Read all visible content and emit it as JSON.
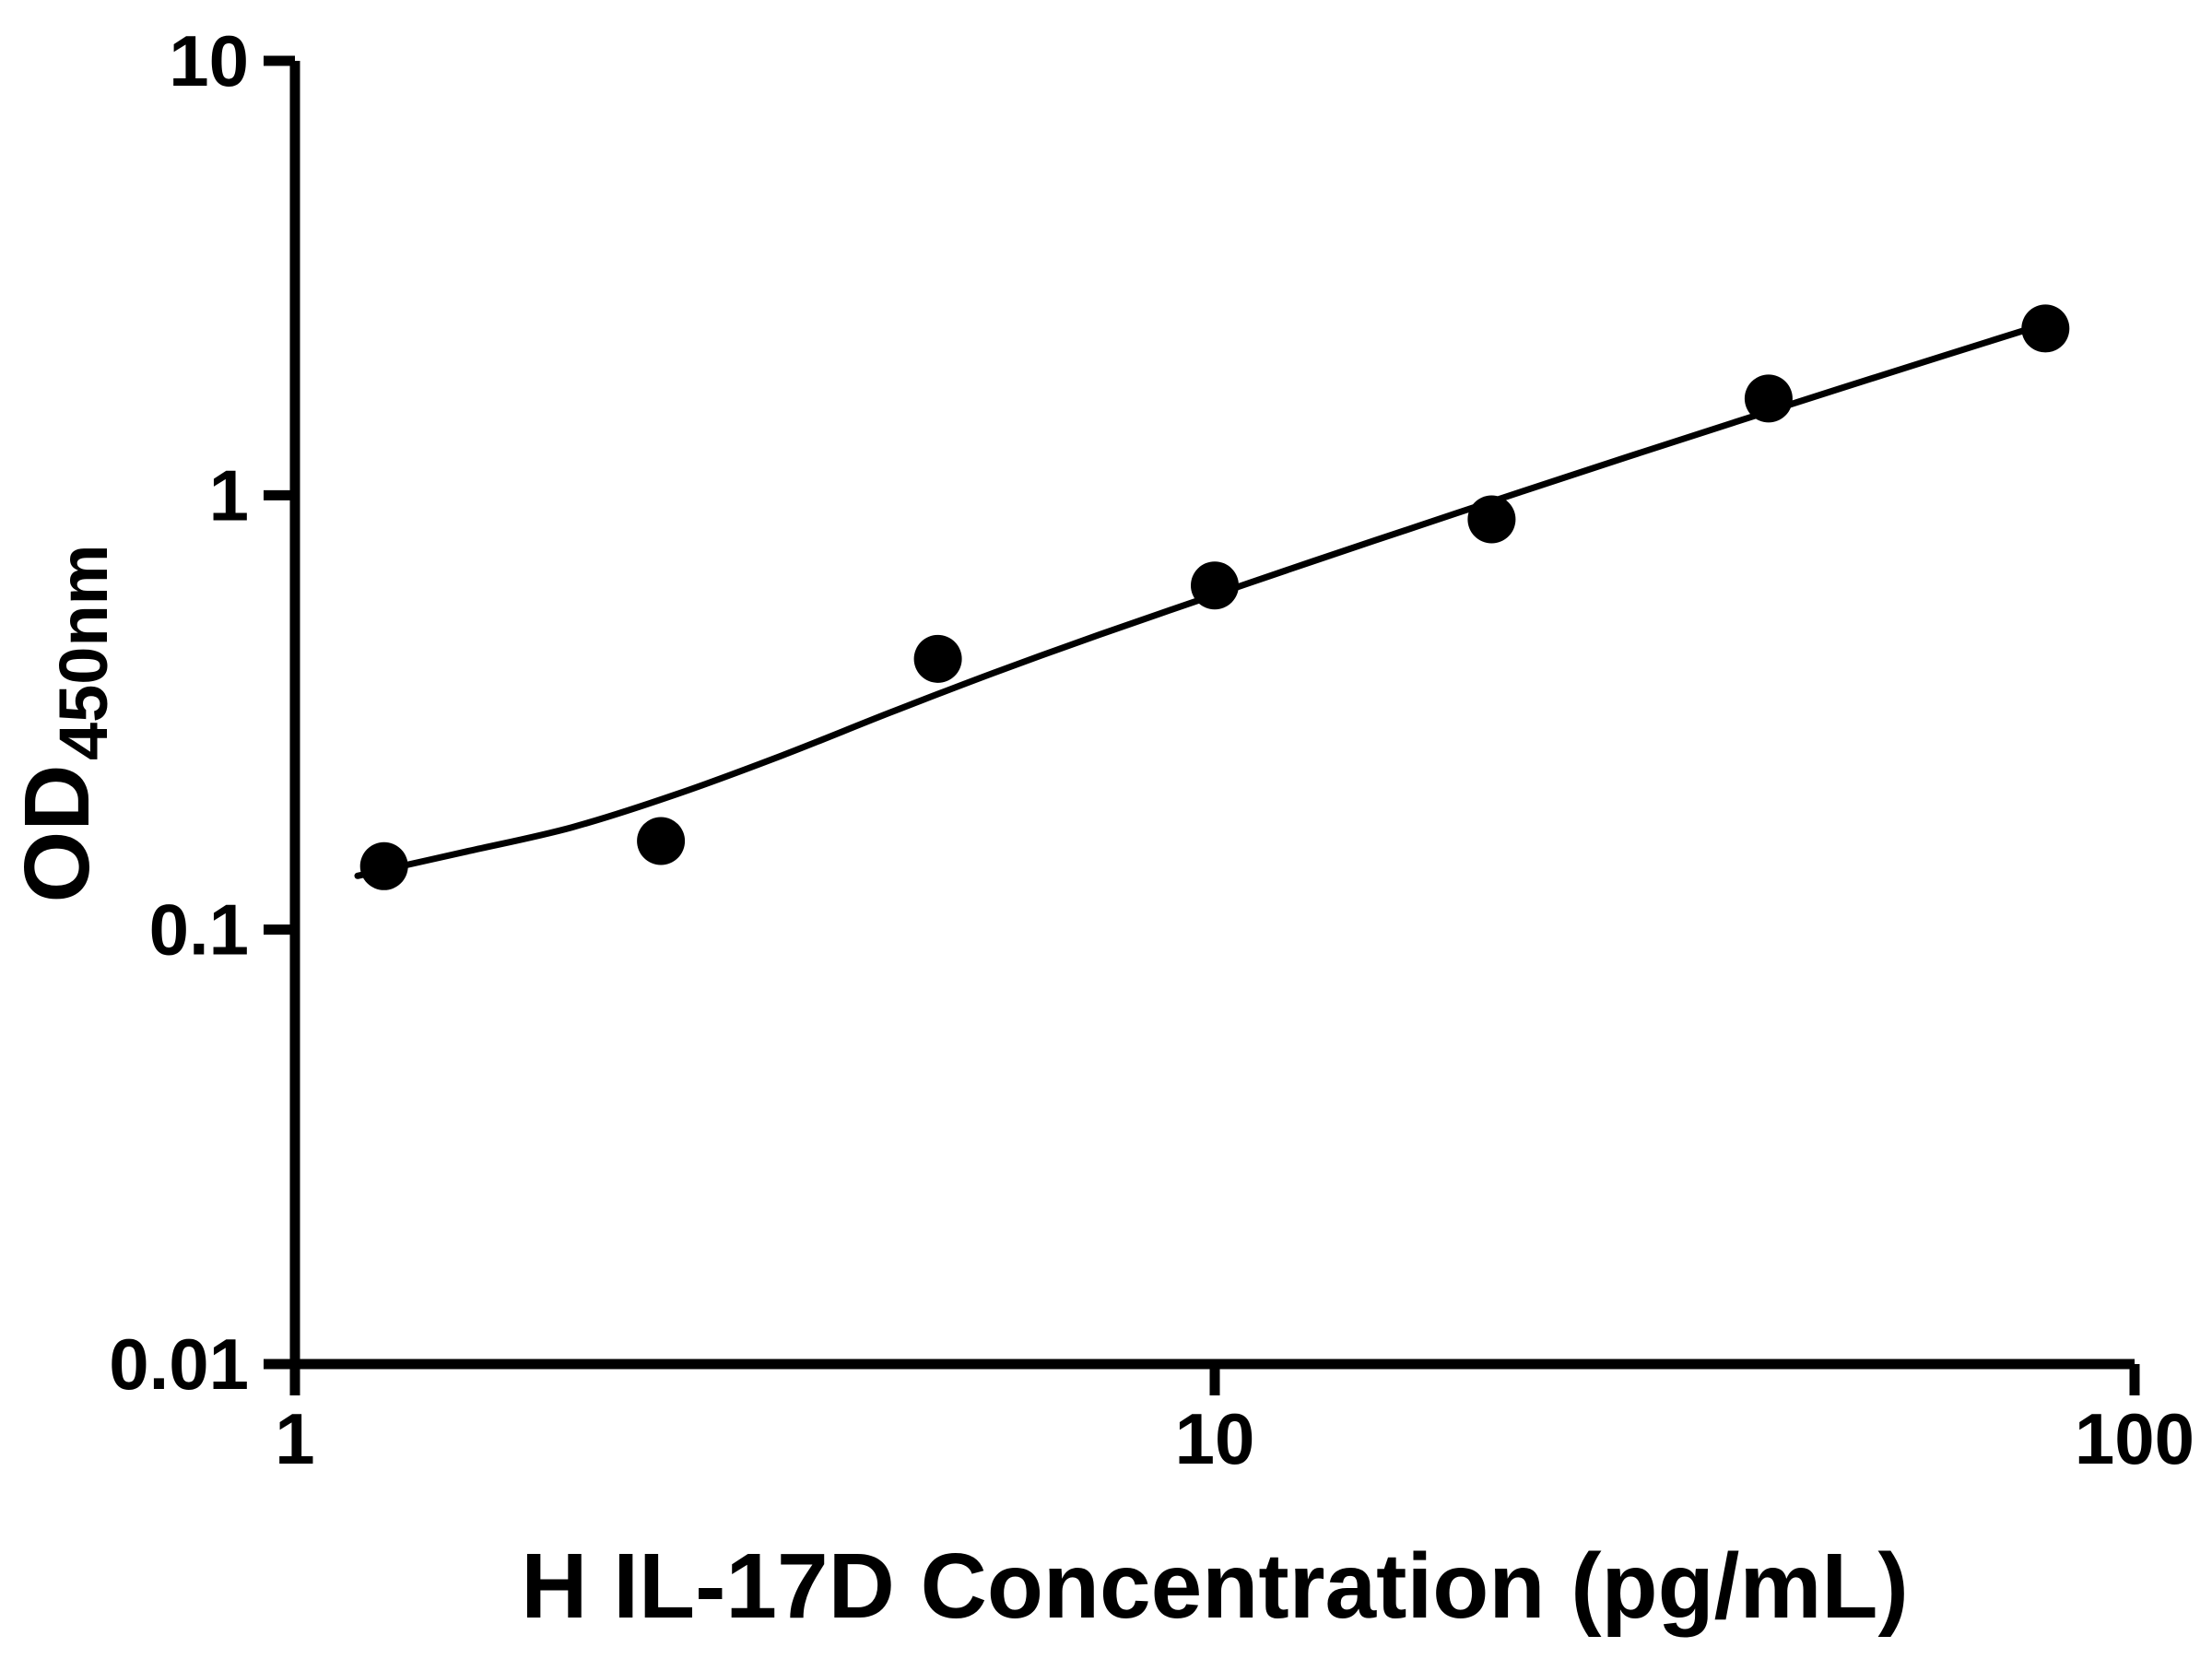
{
  "chart_data": {
    "type": "scatter",
    "title": "",
    "xlabel": "H IL-17D Concentration (pg/mL)",
    "ylabel": "OD450nm",
    "ylabel_main": "OD",
    "ylabel_sub": "450nm",
    "x_scale": "log",
    "y_scale": "log",
    "xlim": [
      1,
      100
    ],
    "ylim": [
      0.01,
      10
    ],
    "grid": false,
    "legend": false,
    "x_ticks": [
      {
        "value": 1,
        "label": "1"
      },
      {
        "value": 10,
        "label": "10"
      },
      {
        "value": 100,
        "label": "100"
      }
    ],
    "y_ticks": [
      {
        "value": 0.01,
        "label": "0.01"
      },
      {
        "value": 0.1,
        "label": "0.1"
      },
      {
        "value": 1,
        "label": "1"
      },
      {
        "value": 10,
        "label": "10"
      }
    ],
    "series": [
      {
        "name": "standard-points",
        "type": "scatter",
        "x": [
          1.25,
          2.5,
          5,
          10,
          20,
          40,
          80
        ],
        "y": [
          0.14,
          0.16,
          0.42,
          0.62,
          0.88,
          1.67,
          2.42
        ]
      }
    ],
    "fit_curve": {
      "name": "fitted-standard-curve",
      "x": [
        1.17,
        1.53,
        2.0,
        2.6,
        3.39,
        4.42,
        5.75,
        7.5,
        9.77,
        12.74,
        16.6,
        21.63,
        28.18,
        36.73,
        47.86,
        62.37,
        81.3
      ],
      "y": [
        0.133,
        0.151,
        0.172,
        0.205,
        0.252,
        0.315,
        0.39,
        0.478,
        0.58,
        0.703,
        0.848,
        1.022,
        1.228,
        1.472,
        1.761,
        2.103,
        2.508
      ]
    },
    "marker_color": "#000000",
    "line_color": "#000000",
    "axis_color": "#000000",
    "background": "#ffffff"
  }
}
